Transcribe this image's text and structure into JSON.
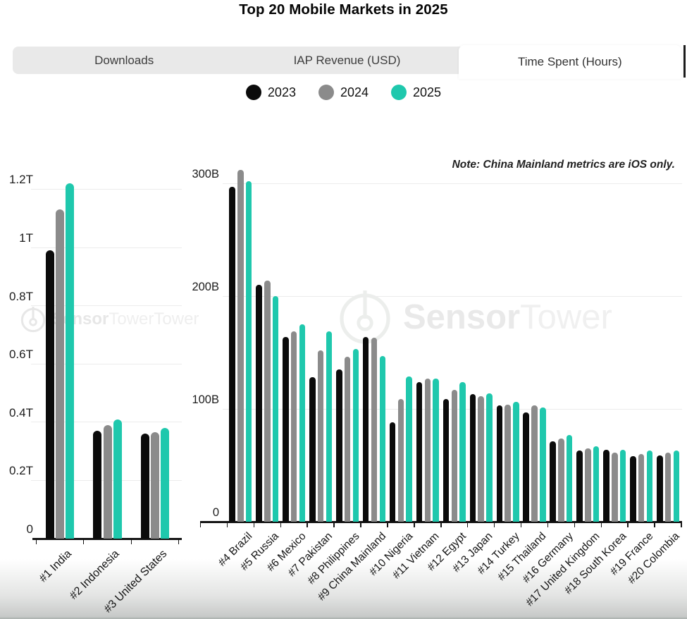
{
  "title": "Top 20 Mobile Markets in 2025",
  "tabs": [
    {
      "label": "Downloads",
      "active": false
    },
    {
      "label": "IAP Revenue (USD)",
      "active": false
    },
    {
      "label": "Time Spent (Hours)",
      "active": true
    }
  ],
  "legend": [
    {
      "label": "2023",
      "color": "#0b0b0b"
    },
    {
      "label": "2024",
      "color": "#8b8b8b"
    },
    {
      "label": "2025",
      "color": "#1fc8ad"
    }
  ],
  "note": "Note: China Mainland metrics are iOS only.",
  "watermark": {
    "bold": "Sensor",
    "light": "Tower"
  },
  "colors": {
    "bar_2023": "#0b0b0b",
    "bar_2024": "#8b8b8b",
    "bar_2025": "#1fc8ad",
    "gridline": "#ececec",
    "axis": "#141414",
    "tabbar_bg": "#e9e9e9",
    "active_tab_bg": "#ffffff"
  },
  "chart_data": [
    {
      "type": "bar",
      "value_unit": "trillions (T) of hours",
      "categories": [
        "#1 India",
        "#2 Indonesia",
        "#3 United States"
      ],
      "series": [
        {
          "name": "2023",
          "color": "#0b0b0b",
          "values": [
            0.99,
            0.37,
            0.36
          ]
        },
        {
          "name": "2024",
          "color": "#8b8b8b",
          "values": [
            1.13,
            0.39,
            0.365
          ]
        },
        {
          "name": "2025",
          "color": "#1fc8ad",
          "values": [
            1.22,
            0.41,
            0.38
          ]
        }
      ],
      "ylim": [
        0,
        1.29
      ],
      "yticks": [
        {
          "value": 0,
          "label": "0"
        },
        {
          "value": 0.2,
          "label": "0.2T"
        },
        {
          "value": 0.4,
          "label": "0.4T"
        },
        {
          "value": 0.6,
          "label": "0.6T"
        },
        {
          "value": 0.8,
          "label": "0.8T"
        },
        {
          "value": 1.0,
          "label": "1T"
        },
        {
          "value": 1.2,
          "label": "1.2T"
        }
      ],
      "grid": true,
      "legend_position": "top-center-shared"
    },
    {
      "type": "bar",
      "value_unit": "billions (B) of hours",
      "categories": [
        "#4 Brazil",
        "#5 Russia",
        "#6 Mexico",
        "#7 Pakistan",
        "#8 Philippines",
        "#9 China Mainland",
        "#10 Nigeria",
        "#11 Vietnam",
        "#12 Egypt",
        "#13 Japan",
        "#14 Turkey",
        "#15 Thailand",
        "#16 Germany",
        "#17 United Kingdom",
        "#18 South Korea",
        "#19 France",
        "#20 Colombia"
      ],
      "series": [
        {
          "name": "2023",
          "color": "#0b0b0b",
          "values": [
            297,
            210,
            164,
            128,
            135,
            164,
            88,
            124,
            109,
            113,
            103,
            97,
            71,
            63,
            64,
            58,
            59
          ]
        },
        {
          "name": "2024",
          "color": "#8b8b8b",
          "values": [
            312,
            214,
            169,
            152,
            146,
            163,
            109,
            127,
            117,
            111,
            104,
            103,
            74,
            65,
            61,
            60,
            61
          ]
        },
        {
          "name": "2025",
          "color": "#1fc8ad",
          "values": [
            302,
            200,
            175,
            169,
            153,
            147,
            129,
            127,
            124,
            114,
            106,
            101,
            77,
            67,
            64,
            63,
            63
          ]
        }
      ],
      "ylim": [
        0,
        320
      ],
      "yticks": [
        {
          "value": 0,
          "label": "0"
        },
        {
          "value": 100,
          "label": "100B"
        },
        {
          "value": 200,
          "label": "200B"
        },
        {
          "value": 300,
          "label": "300B"
        }
      ],
      "grid": true,
      "annotation": "Note: China Mainland metrics are iOS only."
    }
  ]
}
